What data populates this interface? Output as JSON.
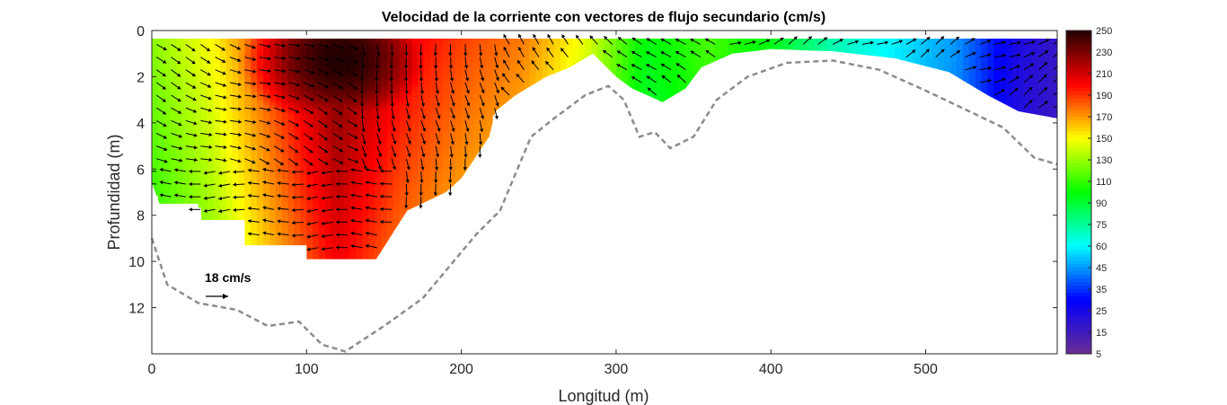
{
  "chart_data": {
    "type": "heatmap",
    "title": "Velocidad de la corriente con vectores de flujo secundario (cm/s)",
    "xlabel": "Longitud (m)",
    "ylabel": "Profundidad (m)",
    "xlim": [
      0,
      585
    ],
    "ylim": [
      0,
      14
    ],
    "y_reversed": true,
    "x_ticks": [
      "0",
      "100",
      "200",
      "300",
      "400",
      "500"
    ],
    "y_ticks": [
      "0",
      "2",
      "4",
      "6",
      "8",
      "10",
      "12"
    ],
    "colorbar": {
      "min": 5,
      "max": 250,
      "tick_labels": [
        "250",
        "230",
        "210",
        "190",
        "170",
        "150",
        "130",
        "110",
        "90",
        "75",
        "60",
        "45",
        "35",
        "25",
        "15",
        "5"
      ]
    },
    "reference_vector": {
      "label": "18 cm/s",
      "x": 35,
      "depth": 11.5
    },
    "velocity_hotspot": {
      "x": 120,
      "depth": 1.2,
      "value": 250
    },
    "velocity_profile": [
      {
        "x": 0,
        "value": 150
      },
      {
        "x": 40,
        "value": 170
      },
      {
        "x": 80,
        "value": 205
      },
      {
        "x": 120,
        "value": 240
      },
      {
        "x": 160,
        "value": 215
      },
      {
        "x": 200,
        "value": 200
      },
      {
        "x": 240,
        "value": 190
      },
      {
        "x": 280,
        "value": 165
      },
      {
        "x": 320,
        "value": 125
      },
      {
        "x": 360,
        "value": 140
      },
      {
        "x": 400,
        "value": 125
      },
      {
        "x": 440,
        "value": 100
      },
      {
        "x": 480,
        "value": 85
      },
      {
        "x": 520,
        "value": 70
      },
      {
        "x": 560,
        "value": 35
      },
      {
        "x": 585,
        "value": 25
      }
    ],
    "data_extent": [
      {
        "x": 0,
        "depth": 6.6
      },
      {
        "x": 5,
        "depth": 7.5
      },
      {
        "x": 30,
        "depth": 7.5
      },
      {
        "x": 30,
        "depth": 8.2
      },
      {
        "x": 60,
        "depth": 8.2
      },
      {
        "x": 60,
        "depth": 8.8
      },
      {
        "x": 60,
        "depth": 9.3
      },
      {
        "x": 100,
        "depth": 9.3
      },
      {
        "x": 100,
        "depth": 9.9
      },
      {
        "x": 145,
        "depth": 9.9
      },
      {
        "x": 165,
        "depth": 7.8
      },
      {
        "x": 190,
        "depth": 7.0
      },
      {
        "x": 200,
        "depth": 6.4
      },
      {
        "x": 218,
        "depth": 4.6
      },
      {
        "x": 222,
        "depth": 3.5
      },
      {
        "x": 235,
        "depth": 2.8
      },
      {
        "x": 255,
        "depth": 2.0
      },
      {
        "x": 270,
        "depth": 1.6
      },
      {
        "x": 285,
        "depth": 1.0
      },
      {
        "x": 300,
        "depth": 2.0
      },
      {
        "x": 310,
        "depth": 2.5
      },
      {
        "x": 330,
        "depth": 3.1
      },
      {
        "x": 345,
        "depth": 2.5
      },
      {
        "x": 355,
        "depth": 1.6
      },
      {
        "x": 375,
        "depth": 1.0
      },
      {
        "x": 400,
        "depth": 0.8
      },
      {
        "x": 440,
        "depth": 0.9
      },
      {
        "x": 480,
        "depth": 1.2
      },
      {
        "x": 515,
        "depth": 1.8
      },
      {
        "x": 540,
        "depth": 2.8
      },
      {
        "x": 560,
        "depth": 3.5
      },
      {
        "x": 585,
        "depth": 3.8
      }
    ],
    "bottom_profile": [
      {
        "x": 0,
        "depth": 9.0
      },
      {
        "x": 10,
        "depth": 11.0
      },
      {
        "x": 30,
        "depth": 11.8
      },
      {
        "x": 55,
        "depth": 12.1
      },
      {
        "x": 75,
        "depth": 12.8
      },
      {
        "x": 95,
        "depth": 12.6
      },
      {
        "x": 110,
        "depth": 13.6
      },
      {
        "x": 125,
        "depth": 13.9
      },
      {
        "x": 150,
        "depth": 12.8
      },
      {
        "x": 175,
        "depth": 11.6
      },
      {
        "x": 195,
        "depth": 10.0
      },
      {
        "x": 210,
        "depth": 8.8
      },
      {
        "x": 225,
        "depth": 7.8
      },
      {
        "x": 235,
        "depth": 6.2
      },
      {
        "x": 245,
        "depth": 4.6
      },
      {
        "x": 260,
        "depth": 3.8
      },
      {
        "x": 280,
        "depth": 2.8
      },
      {
        "x": 295,
        "depth": 2.4
      },
      {
        "x": 305,
        "depth": 3.0
      },
      {
        "x": 315,
        "depth": 4.6
      },
      {
        "x": 325,
        "depth": 4.4
      },
      {
        "x": 335,
        "depth": 5.1
      },
      {
        "x": 350,
        "depth": 4.6
      },
      {
        "x": 365,
        "depth": 3.0
      },
      {
        "x": 385,
        "depth": 2.0
      },
      {
        "x": 410,
        "depth": 1.4
      },
      {
        "x": 440,
        "depth": 1.3
      },
      {
        "x": 470,
        "depth": 1.7
      },
      {
        "x": 500,
        "depth": 2.6
      },
      {
        "x": 525,
        "depth": 3.4
      },
      {
        "x": 550,
        "depth": 4.2
      },
      {
        "x": 570,
        "depth": 5.5
      },
      {
        "x": 585,
        "depth": 5.8
      }
    ]
  },
  "colors": {
    "colormap": [
      "#6a2c91",
      "#0000ff",
      "#00ffff",
      "#00ff00",
      "#ffff00",
      "#ff0000",
      "#220000"
    ],
    "bottom_line": "#8c8c8c",
    "axis": "#262626"
  }
}
